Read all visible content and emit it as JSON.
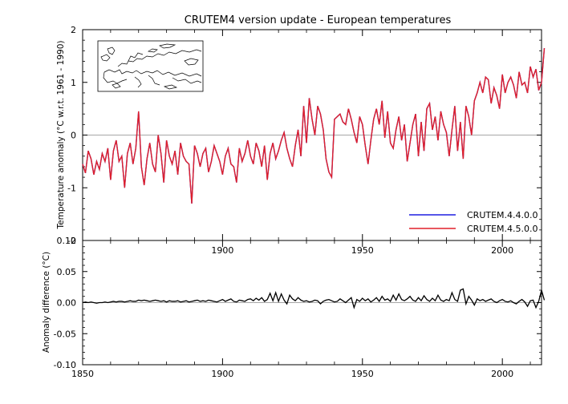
{
  "chart_data": [
    {
      "type": "line",
      "title": "CRUTEM4 version update - European temperatures",
      "xlabel": "",
      "ylabel": "Temperature anomaly (°C w.r.t. 1961 - 1990)",
      "xlim": [
        1850,
        2014
      ],
      "ylim": [
        -2,
        2
      ],
      "yticks": [
        "-2",
        "-1",
        "0",
        "1",
        "2"
      ],
      "xticks": [
        "1900",
        "1950",
        "2000"
      ],
      "zero_line": true,
      "inset_map": "europe-coastline-map",
      "legend": {
        "placement": "bottom-right"
      },
      "series": [
        {
          "name": "CRUTEM.4.4.0.0",
          "color": "#1f1fe0",
          "x_start": 1850,
          "values": [
            -0.55,
            -0.72,
            -0.3,
            -0.45,
            -0.75,
            -0.5,
            -0.65,
            -0.35,
            -0.5,
            -0.25,
            -0.85,
            -0.3,
            -0.1,
            -0.5,
            -0.4,
            -1.0,
            -0.35,
            -0.15,
            -0.55,
            -0.25,
            0.45,
            -0.6,
            -0.95,
            -0.45,
            -0.15,
            -0.55,
            -0.7,
            0.0,
            -0.35,
            -0.9,
            -0.1,
            -0.4,
            -0.55,
            -0.3,
            -0.75,
            -0.15,
            -0.4,
            -0.5,
            -0.55,
            -1.3,
            -0.2,
            -0.35,
            -0.6,
            -0.35,
            -0.25,
            -0.7,
            -0.5,
            -0.2,
            -0.35,
            -0.5,
            -0.75,
            -0.4,
            -0.25,
            -0.55,
            -0.6,
            -0.9,
            -0.25,
            -0.5,
            -0.35,
            -0.1,
            -0.4,
            -0.55,
            -0.15,
            -0.3,
            -0.6,
            -0.2,
            -0.85,
            -0.35,
            -0.15,
            -0.45,
            -0.3,
            -0.1,
            0.05,
            -0.25,
            -0.45,
            -0.6,
            -0.2,
            0.1,
            -0.4,
            0.55,
            -0.15,
            0.7,
            0.3,
            0.0,
            0.55,
            0.4,
            0.1,
            -0.45,
            -0.7,
            -0.8,
            0.3,
            0.35,
            0.4,
            0.25,
            0.2,
            0.5,
            0.3,
            0.05,
            -0.15,
            0.35,
            0.2,
            -0.2,
            -0.55,
            -0.1,
            0.3,
            0.5,
            0.2,
            0.65,
            -0.05,
            0.45,
            -0.15,
            -0.25,
            0.1,
            0.35,
            -0.1,
            0.2,
            -0.5,
            -0.15,
            0.2,
            0.4,
            -0.4,
            0.25,
            -0.3,
            0.5,
            0.6,
            0.1,
            0.35,
            -0.1,
            0.45,
            0.2,
            0.05,
            -0.4,
            0.1,
            0.55,
            -0.3,
            0.25,
            -0.45,
            0.55,
            0.35,
            0.0,
            0.65,
            0.8,
            1.0,
            0.8,
            1.1,
            1.05,
            0.6,
            0.9,
            0.75,
            0.5,
            1.15,
            0.8,
            1.0,
            1.1,
            0.95,
            0.7,
            1.2,
            0.95,
            1.0,
            0.8,
            1.3,
            1.1,
            1.25,
            0.85,
            1.0,
            1.65
          ]
        },
        {
          "name": "CRUTEM.4.5.0.0",
          "color": "#e0202a",
          "x_start": 1850,
          "values": [
            -0.55,
            -0.72,
            -0.3,
            -0.45,
            -0.75,
            -0.5,
            -0.65,
            -0.35,
            -0.5,
            -0.25,
            -0.85,
            -0.3,
            -0.1,
            -0.5,
            -0.4,
            -1.0,
            -0.35,
            -0.15,
            -0.55,
            -0.25,
            0.45,
            -0.6,
            -0.95,
            -0.45,
            -0.15,
            -0.55,
            -0.7,
            0.0,
            -0.35,
            -0.9,
            -0.1,
            -0.4,
            -0.55,
            -0.3,
            -0.75,
            -0.15,
            -0.4,
            -0.5,
            -0.55,
            -1.3,
            -0.2,
            -0.35,
            -0.6,
            -0.35,
            -0.25,
            -0.7,
            -0.5,
            -0.2,
            -0.35,
            -0.5,
            -0.75,
            -0.4,
            -0.25,
            -0.55,
            -0.6,
            -0.9,
            -0.25,
            -0.5,
            -0.35,
            -0.1,
            -0.4,
            -0.55,
            -0.15,
            -0.3,
            -0.6,
            -0.2,
            -0.85,
            -0.35,
            -0.15,
            -0.45,
            -0.3,
            -0.1,
            0.05,
            -0.25,
            -0.45,
            -0.6,
            -0.2,
            0.1,
            -0.4,
            0.55,
            -0.15,
            0.7,
            0.3,
            0.0,
            0.55,
            0.4,
            0.1,
            -0.45,
            -0.7,
            -0.8,
            0.3,
            0.35,
            0.4,
            0.25,
            0.2,
            0.5,
            0.3,
            0.05,
            -0.15,
            0.35,
            0.2,
            -0.2,
            -0.55,
            -0.1,
            0.3,
            0.5,
            0.2,
            0.65,
            -0.05,
            0.45,
            -0.15,
            -0.25,
            0.1,
            0.35,
            -0.1,
            0.2,
            -0.5,
            -0.15,
            0.2,
            0.4,
            -0.4,
            0.25,
            -0.3,
            0.5,
            0.6,
            0.1,
            0.35,
            -0.1,
            0.45,
            0.2,
            0.05,
            -0.4,
            0.1,
            0.55,
            -0.3,
            0.25,
            -0.45,
            0.55,
            0.35,
            0.0,
            0.65,
            0.8,
            1.0,
            0.8,
            1.1,
            1.05,
            0.6,
            0.9,
            0.75,
            0.5,
            1.15,
            0.8,
            1.0,
            1.1,
            0.95,
            0.7,
            1.2,
            0.95,
            1.0,
            0.8,
            1.3,
            1.1,
            1.25,
            0.85,
            1.0,
            1.65
          ]
        }
      ]
    },
    {
      "type": "line",
      "title": "",
      "xlabel": "",
      "ylabel": "Anomaly difference (°C)",
      "xlim": [
        1850,
        2014
      ],
      "ylim": [
        -0.1,
        0.1
      ],
      "yticks": [
        "-0.10",
        "-0.05",
        "0.00",
        "0.05",
        "0.10"
      ],
      "xticks": [
        "1850",
        "1900",
        "1950",
        "2000"
      ],
      "zero_line": true,
      "series": [
        {
          "color": "#000000",
          "x_start": 1850,
          "values": [
            0.0,
            0.001,
            0.0,
            0.001,
            0.0,
            -0.001,
            0.0,
            0.0,
            0.001,
            0.0,
            0.001,
            0.002,
            0.001,
            0.002,
            0.002,
            0.001,
            0.002,
            0.003,
            0.002,
            0.002,
            0.004,
            0.003,
            0.004,
            0.003,
            0.002,
            0.003,
            0.004,
            0.003,
            0.002,
            0.003,
            0.001,
            0.003,
            0.002,
            0.002,
            0.003,
            0.001,
            0.002,
            0.003,
            0.001,
            0.002,
            0.003,
            0.004,
            0.002,
            0.003,
            0.002,
            0.004,
            0.003,
            0.002,
            0.001,
            0.003,
            0.005,
            0.002,
            0.004,
            0.006,
            0.002,
            0.001,
            0.004,
            0.003,
            0.002,
            0.005,
            0.006,
            0.003,
            0.007,
            0.004,
            0.008,
            0.002,
            0.005,
            0.015,
            0.003,
            0.016,
            0.002,
            0.014,
            0.004,
            -0.002,
            0.012,
            0.006,
            0.003,
            0.008,
            0.004,
            0.002,
            0.003,
            0.001,
            0.002,
            0.004,
            0.003,
            -0.002,
            0.002,
            0.004,
            0.005,
            0.003,
            0.001,
            0.002,
            0.006,
            0.003,
            0.0,
            0.004,
            0.008,
            -0.008,
            0.005,
            0.002,
            0.007,
            0.003,
            0.006,
            0.001,
            0.004,
            0.008,
            0.002,
            0.01,
            0.004,
            0.006,
            0.002,
            0.012,
            0.004,
            0.014,
            0.005,
            0.003,
            0.006,
            0.01,
            0.004,
            0.002,
            0.008,
            0.003,
            0.011,
            0.005,
            0.002,
            0.007,
            0.003,
            0.012,
            0.004,
            0.002,
            0.005,
            0.003,
            0.016,
            0.005,
            0.002,
            0.02,
            0.022,
            -0.002,
            0.01,
            0.004,
            -0.004,
            0.006,
            0.003,
            0.005,
            0.002,
            0.004,
            0.006,
            0.002,
            0.0,
            0.003,
            0.005,
            0.002,
            0.001,
            0.003,
            0.0,
            -0.002,
            0.002,
            0.005,
            0.001,
            -0.006,
            0.003,
            0.004,
            -0.008,
            0.002,
            0.02,
            0.004
          ]
        }
      ]
    }
  ]
}
